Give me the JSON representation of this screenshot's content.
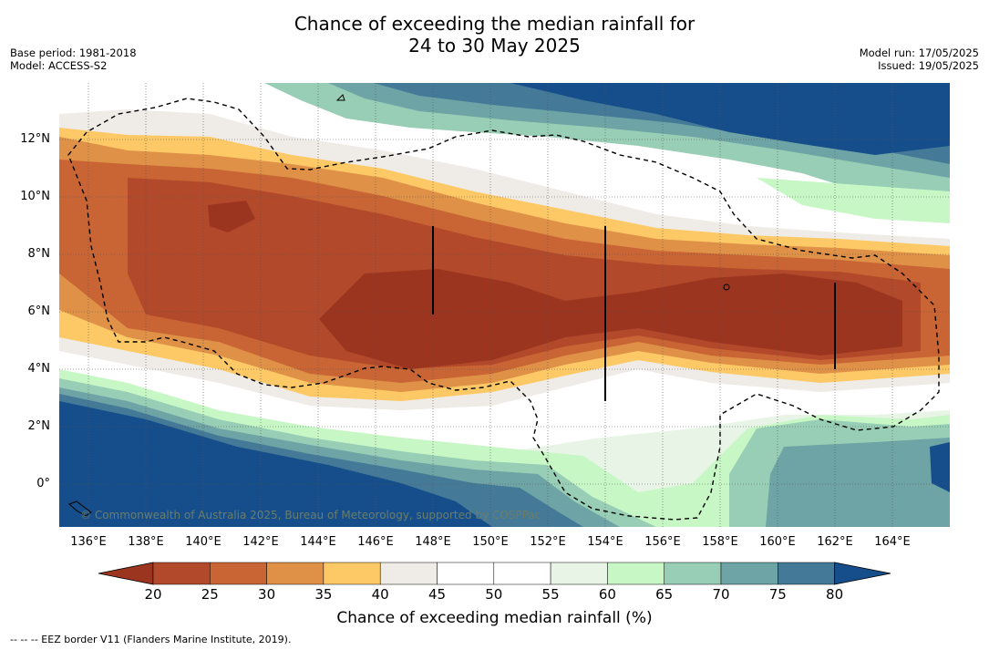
{
  "title": {
    "line1": "Chance of exceeding the median rainfall for",
    "line2": "24 to 30 May 2025"
  },
  "meta_left": {
    "base_period": "Base period: 1981-2018",
    "model": "Model: ACCESS-S2"
  },
  "meta_right": {
    "model_run": "Model run: 17/05/2025",
    "issued": "Issued: 19/05/2025"
  },
  "map": {
    "lat_labels": [
      "12°N",
      "10°N",
      "8°N",
      "6°N",
      "4°N",
      "2°N",
      "0°"
    ],
    "lon_labels": [
      "136°E",
      "138°E",
      "140°E",
      "142°E",
      "144°E",
      "146°E",
      "148°E",
      "150°E",
      "152°E",
      "154°E",
      "156°E",
      "158°E",
      "160°E",
      "162°E",
      "164°E"
    ],
    "copyright": "© Commonwealth of Australia 2025, Bureau of Meteorology, supported by COSPPac"
  },
  "colorbar": {
    "ticks": [
      "20",
      "25",
      "30",
      "35",
      "40",
      "45",
      "50",
      "55",
      "60",
      "65",
      "70",
      "75",
      "80"
    ],
    "colors": [
      "#9b3520",
      "#b1492a",
      "#c96534",
      "#df9148",
      "#fcc966",
      "#efebe6",
      "#ffffff",
      "#ffffff",
      "#e8f5e6",
      "#c8f7c6",
      "#98ceb5",
      "#6ea4a5",
      "#447a98",
      "#154e8a"
    ],
    "label": "Chance of exceeding median rainfall (%)"
  },
  "footnote": "-- -- -- EEZ border V11 (Flanders Marine Institute, 2019)."
}
